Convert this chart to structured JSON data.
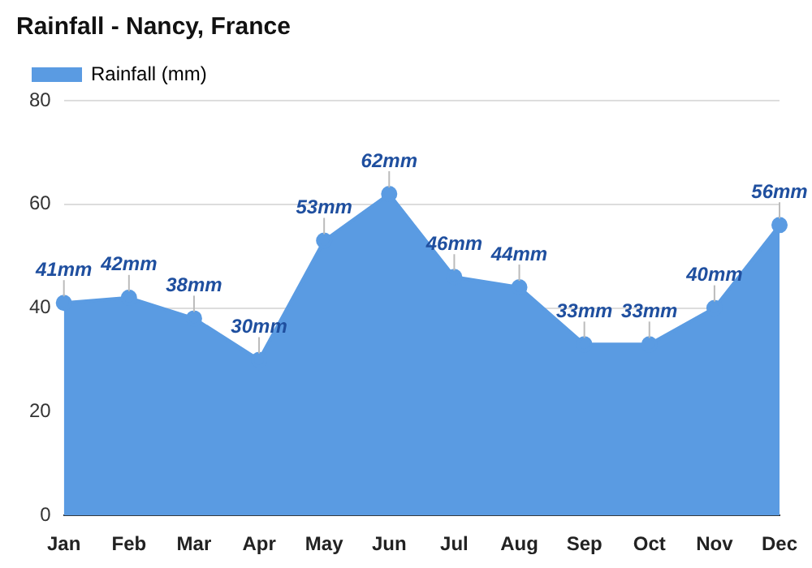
{
  "chart_data": {
    "type": "area",
    "title": "Rainfall - Nancy, France",
    "categories": [
      "Jan",
      "Feb",
      "Mar",
      "Apr",
      "May",
      "Jun",
      "Jul",
      "Aug",
      "Sep",
      "Oct",
      "Nov",
      "Dec"
    ],
    "series": [
      {
        "name": "Rainfall (mm)",
        "color": "#5a9be2",
        "values": [
          41,
          42,
          38,
          30,
          53,
          62,
          46,
          44,
          33,
          33,
          40,
          56
        ],
        "value_labels": [
          "41mm",
          "42mm",
          "38mm",
          "30mm",
          "53mm",
          "62mm",
          "46mm",
          "44mm",
          "33mm",
          "33mm",
          "40mm",
          "56mm"
        ]
      }
    ],
    "ylim": [
      0,
      80
    ],
    "yticks": [
      0,
      20,
      40,
      60,
      80
    ],
    "grid": "y",
    "legend": "top left",
    "marker": "circle",
    "line_style": "solid"
  }
}
